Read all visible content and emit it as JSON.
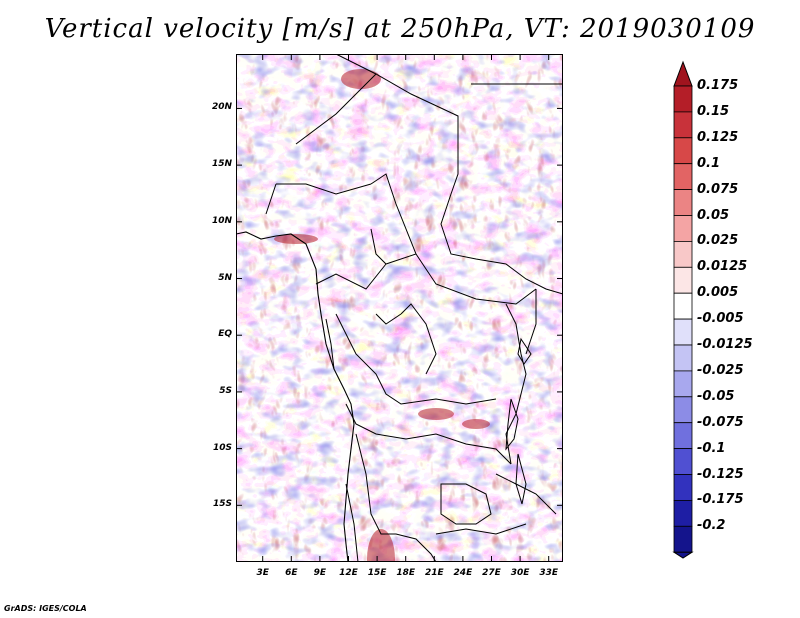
{
  "title": "Vertical velocity [m/s] at 250hPa, VT: 2019030109",
  "credit": "GrADS: IGES/COLA",
  "map": {
    "lat_labels": [
      "20N",
      "15N",
      "10N",
      "5N",
      "EQ",
      "5S",
      "10S",
      "15S"
    ],
    "lat_values": [
      20,
      15,
      10,
      5,
      0,
      -5,
      -10,
      -15
    ],
    "lat_range": [
      -20,
      24.8
    ],
    "lon_labels": [
      "3E",
      "6E",
      "9E",
      "12E",
      "15E",
      "18E",
      "21E",
      "24E",
      "27E",
      "30E",
      "33E"
    ],
    "lon_values": [
      3,
      6,
      9,
      12,
      15,
      18,
      21,
      24,
      27,
      30,
      33
    ],
    "lon_range": [
      0.2,
      34.5
    ]
  },
  "colorbar": {
    "labels": [
      "0.175",
      "0.15",
      "0.125",
      "0.1",
      "0.075",
      "0.05",
      "0.025",
      "0.0125",
      "0.005",
      "-0.005",
      "-0.0125",
      "-0.025",
      "-0.05",
      "-0.075",
      "-0.1",
      "-0.125",
      "-0.175",
      "-0.2"
    ],
    "colors": [
      "#a0141e",
      "#b41e28",
      "#c8323a",
      "#d74848",
      "#e26464",
      "#eb8484",
      "#f4a4a4",
      "#f8c8c8",
      "#fce6e6",
      "#ffffff",
      "#e0e0fa",
      "#c4c4f4",
      "#a8a8ee",
      "#8c8ce6",
      "#7070de",
      "#5050d2",
      "#3232be",
      "#1e1ea4",
      "#14148c",
      "#0a0a78"
    ],
    "top_color": "#a0141e",
    "bottom_color": "#14148c"
  }
}
